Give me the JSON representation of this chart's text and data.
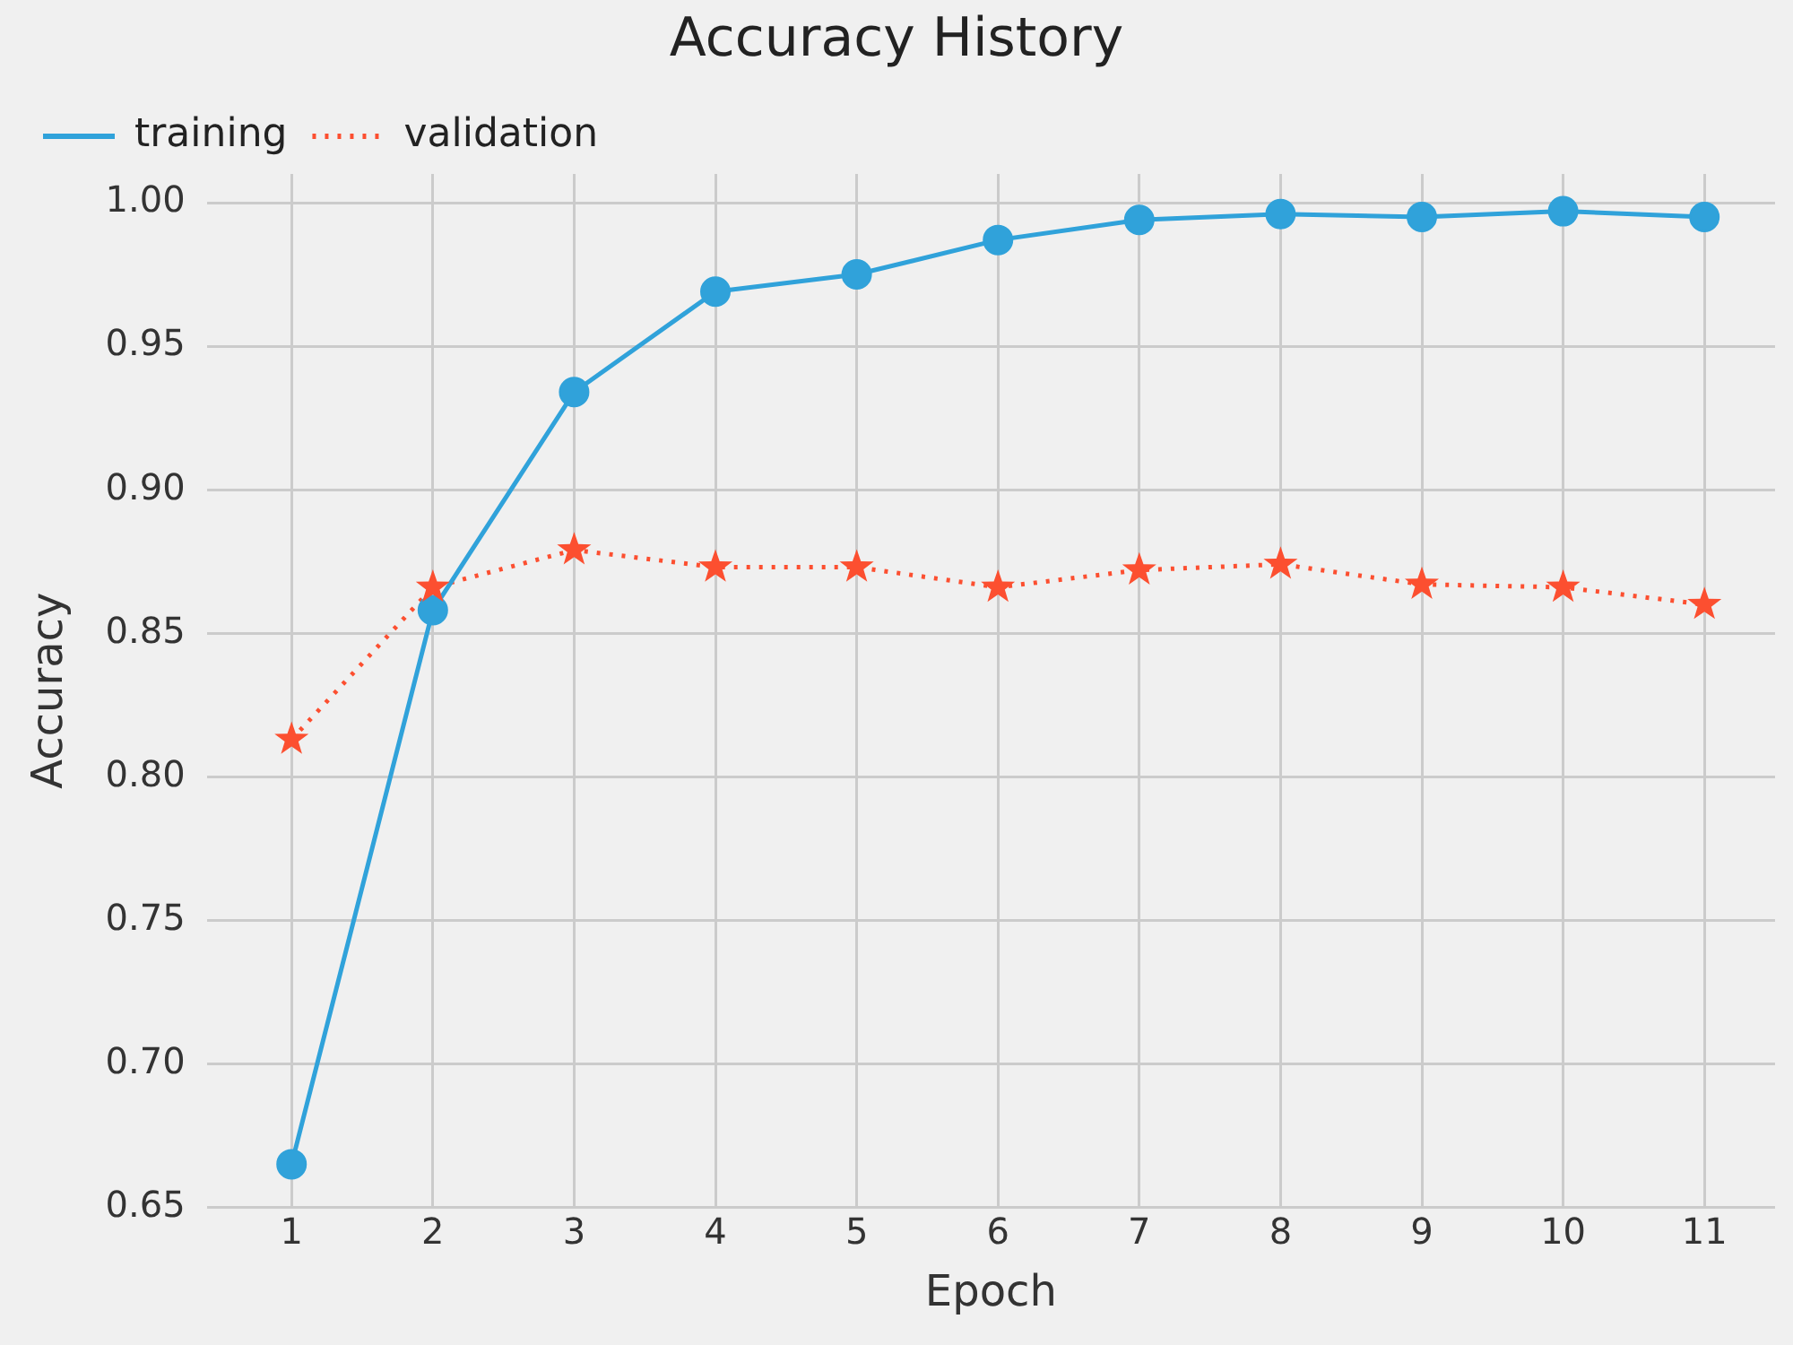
{
  "chart_data": {
    "type": "line",
    "title": "Accuracy History",
    "xlabel": "Epoch",
    "ylabel": "Accuracy",
    "x": [
      1,
      2,
      3,
      4,
      5,
      6,
      7,
      8,
      9,
      10,
      11
    ],
    "xlim": [
      0.4,
      11.5
    ],
    "xticks": [
      1,
      2,
      3,
      4,
      5,
      6,
      7,
      8,
      9,
      10,
      11
    ],
    "ylim": [
      0.65,
      1.01
    ],
    "yticks": [
      0.65,
      {
        "value": 0.7,
        "label": "0.70"
      },
      0.75,
      {
        "value": 0.8,
        "label": "0.80"
      },
      0.85,
      {
        "value": 0.9,
        "label": "0.90"
      },
      0.95,
      {
        "value": 1.0,
        "label": "1.00"
      }
    ],
    "grid": true,
    "legend": "top left",
    "series": [
      {
        "name": "training",
        "color": "#30a2da",
        "marker": "circle",
        "line_style": "solid",
        "values": [
          0.665,
          0.858,
          0.934,
          0.969,
          0.975,
          0.987,
          0.994,
          0.996,
          0.995,
          0.997,
          0.995
        ]
      },
      {
        "name": "validation",
        "color": "#fc4f30",
        "marker": "star",
        "line_style": "dotted",
        "values": [
          0.813,
          0.866,
          0.879,
          0.873,
          0.873,
          0.866,
          0.872,
          0.874,
          0.867,
          0.866,
          0.86
        ]
      }
    ]
  }
}
